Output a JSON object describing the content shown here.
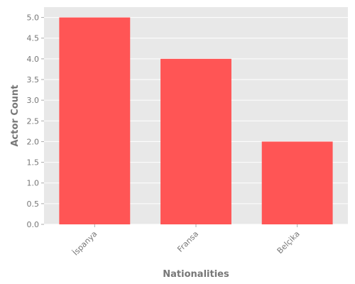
{
  "chart_data": {
    "type": "bar",
    "categories": [
      "İspanya",
      "Fransa",
      "Belçika"
    ],
    "values": [
      5,
      4,
      2
    ],
    "xlabel": "Nationalities",
    "ylabel": "Actor Count",
    "ylim": [
      0,
      5.25
    ],
    "yticks": [
      "0.0",
      "0.5",
      "1.0",
      "1.5",
      "2.0",
      "2.5",
      "3.0",
      "3.5",
      "4.0",
      "4.5",
      "5.0"
    ],
    "grid": true,
    "colors": {
      "bar": "#ff5555",
      "plot_background": "#e8e8e8",
      "grid": "#ffffff",
      "text": "#777777"
    }
  }
}
